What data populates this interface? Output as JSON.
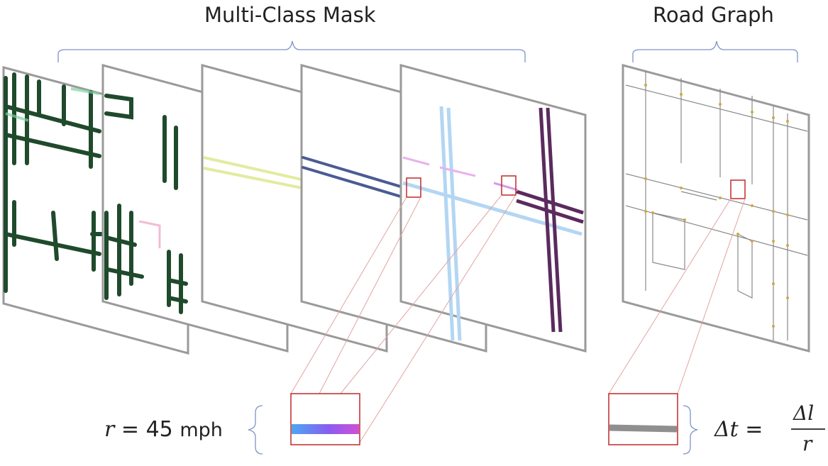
{
  "labels": {
    "multi_class_mask": "Multi-Class Mask",
    "road_graph": "Road Graph"
  },
  "speed_equation": {
    "var": "r",
    "eq": "=",
    "value": "45",
    "unit": "mph"
  },
  "time_equation": {
    "lhs": "Δt",
    "eq": "=",
    "numerator": "Δl",
    "denominator": "r"
  },
  "colors": {
    "frame": "#9a9a9a",
    "bracket": "#7f93c9",
    "highlight": "#c0282a",
    "zoom_lines": "#e3a3a3",
    "channel_green": "#1f4a2c",
    "channel_yellow": "#e2ea9a",
    "channel_blue": "#4a5b94",
    "channel_lightblue": "#b3d6f3",
    "channel_purple": "#5b2a5e",
    "graph_edge": "#8a8a8a",
    "graph_node": "#d1a743"
  }
}
